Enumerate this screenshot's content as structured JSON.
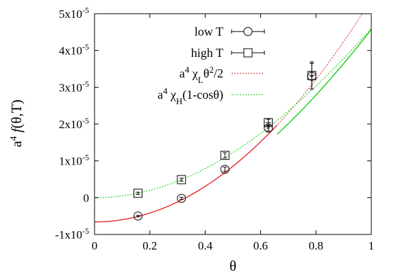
{
  "chart_data": {
    "type": "scatter",
    "xlabel": "θ",
    "ylabel": "a⁴ f(θ,T)",
    "xlim": [
      0,
      1
    ],
    "ylim": [
      -1e-05,
      5e-05
    ],
    "x_ticks": [
      0,
      0.2,
      0.4,
      0.6,
      0.8,
      1
    ],
    "x_tick_labels": [
      "0",
      "0.2",
      "0.4",
      "0.6",
      "0.8",
      "1"
    ],
    "y_ticks": [
      -1e-05,
      0,
      1e-05,
      2e-05,
      3e-05,
      4e-05,
      5e-05
    ],
    "y_tick_labels": [
      {
        "mant": "-1x10",
        "exp": "-5"
      },
      {
        "mant": "0",
        "exp": ""
      },
      {
        "mant": "1x10",
        "exp": "-5"
      },
      {
        "mant": "2x10",
        "exp": "-5"
      },
      {
        "mant": "3x10",
        "exp": "-5"
      },
      {
        "mant": "4x10",
        "exp": "-5"
      },
      {
        "mant": "5x10",
        "exp": "-5"
      }
    ],
    "legend_position": "top-right",
    "grid": false,
    "series": [
      {
        "name": "low T",
        "marker": "circle",
        "color": "#000000",
        "x": [
          0.157,
          0.314,
          0.471,
          0.628,
          0.785
        ],
        "y": [
          -5e-06,
          -2e-07,
          7.7e-06,
          1.89e-05,
          3.3e-05
        ],
        "yerr": [
          2e-07,
          3e-07,
          6e-07,
          8e-07,
          3.5e-06
        ],
        "xerr": [
          0,
          0,
          0,
          0.005,
          0.005
        ]
      },
      {
        "name": "high T",
        "marker": "square",
        "color": "#000000",
        "x": [
          0.157,
          0.314,
          0.471,
          0.628,
          0.785
        ],
        "y": [
          1.2e-06,
          4.9e-06,
          1.15e-05,
          2.04e-05,
          3.32e-05
        ],
        "yerr": [
          3e-07,
          4e-07,
          7e-07,
          9e-07,
          3.7e-06
        ],
        "xerr": [
          0,
          0,
          0,
          0.01,
          0.01
        ]
      }
    ],
    "fits": [
      {
        "name": "a⁴ χL θ²/2",
        "legend": {
          "pre": "a",
          "sup1": "4",
          "mid": " χ",
          "sub": "L",
          "post": "θ",
          "sup2": "2",
          "tail": "/2"
        },
        "color": "#e41a1c",
        "style": "dotted",
        "formula": "quadratic",
        "params": {
          "offset": -6.6e-06,
          "coef": 0.000121
        }
      },
      {
        "name": "a⁴ χH (1-cosθ)",
        "legend": {
          "pre": "a",
          "sup1": "4",
          "mid": " χ",
          "sub": "H",
          "post": "(1-cosθ)"
        },
        "color": "#00cc00",
        "style": "dotted",
        "formula": "one_minus_cos",
        "params": {
          "offset": 0,
          "coef": 0.0001
        }
      }
    ],
    "solid_curves": [
      {
        "color": "#e41a1c",
        "from": "quadratic",
        "x_range": [
          0,
          0.66
        ]
      },
      {
        "color": "#00cc00",
        "from": "one_minus_cos_shifted",
        "x_range": [
          0.66,
          1.0
        ],
        "params": {
          "offset": -6.7e-06,
          "coef": 0.000114
        }
      }
    ]
  }
}
